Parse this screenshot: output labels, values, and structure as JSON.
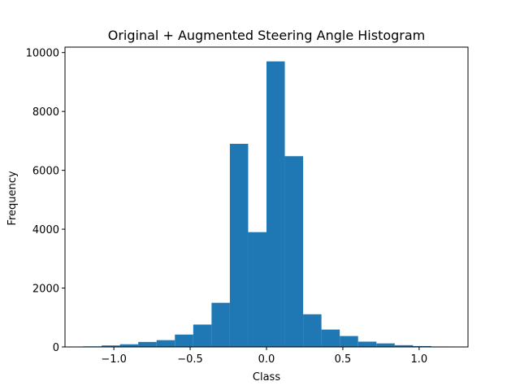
{
  "chart_data": {
    "type": "bar",
    "title": "Original + Augmented Steering Angle Histogram",
    "xlabel": "Class",
    "ylabel": "Frequency",
    "bar_color": "#1f77b4",
    "bins": [
      {
        "x0": -1.2,
        "x1": -1.08,
        "value": 20
      },
      {
        "x0": -1.08,
        "x1": -0.96,
        "value": 50
      },
      {
        "x0": -0.96,
        "x1": -0.84,
        "value": 90
      },
      {
        "x0": -0.84,
        "x1": -0.72,
        "value": 170
      },
      {
        "x0": -0.72,
        "x1": -0.6,
        "value": 230
      },
      {
        "x0": -0.6,
        "x1": -0.48,
        "value": 420
      },
      {
        "x0": -0.48,
        "x1": -0.36,
        "value": 760
      },
      {
        "x0": -0.36,
        "x1": -0.24,
        "value": 1500
      },
      {
        "x0": -0.24,
        "x1": -0.12,
        "value": 6900
      },
      {
        "x0": -0.12,
        "x1": 0.0,
        "value": 3900
      },
      {
        "x0": 0.0,
        "x1": 0.12,
        "value": 9700
      },
      {
        "x0": 0.12,
        "x1": 0.24,
        "value": 6480
      },
      {
        "x0": 0.24,
        "x1": 0.36,
        "value": 1110
      },
      {
        "x0": 0.36,
        "x1": 0.48,
        "value": 590
      },
      {
        "x0": 0.48,
        "x1": 0.6,
        "value": 370
      },
      {
        "x0": 0.6,
        "x1": 0.72,
        "value": 180
      },
      {
        "x0": 0.72,
        "x1": 0.84,
        "value": 120
      },
      {
        "x0": 0.84,
        "x1": 0.96,
        "value": 60
      },
      {
        "x0": 0.96,
        "x1": 1.08,
        "value": 30
      },
      {
        "x0": 1.08,
        "x1": 1.2,
        "value": 15
      }
    ],
    "xlim": [
      -1.32,
      1.32
    ],
    "ylim": [
      0,
      10185
    ],
    "xticks": [
      {
        "value": -1.0,
        "label": "−1.0"
      },
      {
        "value": -0.5,
        "label": "−0.5"
      },
      {
        "value": 0.0,
        "label": "0.0"
      },
      {
        "value": 0.5,
        "label": "0.5"
      },
      {
        "value": 1.0,
        "label": "1.0"
      }
    ],
    "yticks": [
      {
        "value": 0,
        "label": "0"
      },
      {
        "value": 2000,
        "label": "2000"
      },
      {
        "value": 4000,
        "label": "4000"
      },
      {
        "value": 6000,
        "label": "6000"
      },
      {
        "value": 8000,
        "label": "8000"
      },
      {
        "value": 10000,
        "label": "10000"
      }
    ],
    "grid": false,
    "legend": "none"
  }
}
